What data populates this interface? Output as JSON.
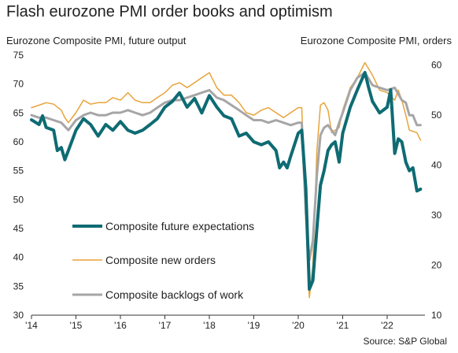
{
  "title": "Flash eurozone PMI order books and optimism",
  "source": "Source: S&P Global",
  "colors": {
    "future": "#0e6b73",
    "orders": "#e8a33a",
    "backlogs": "#a6a6a6",
    "axis": "#333333"
  },
  "chart_data": {
    "type": "line",
    "ylabel_left": "Eurozone Composite PMI, future output",
    "ylabel_right": "Eurozone Composite PMI, orders",
    "ylim_left": [
      30,
      75
    ],
    "ylim_right": [
      10,
      62
    ],
    "yticks_left": [
      30,
      35,
      40,
      45,
      50,
      55,
      60,
      65,
      70,
      75
    ],
    "yticks_right": [
      10,
      20,
      30,
      40,
      50,
      60
    ],
    "xlim": [
      2014.0,
      2022.85
    ],
    "xticks": [
      {
        "x": 2014,
        "label": "'14"
      },
      {
        "x": 2015,
        "label": "'15"
      },
      {
        "x": 2016,
        "label": "'16"
      },
      {
        "x": 2017,
        "label": "'17"
      },
      {
        "x": 2018,
        "label": "'18"
      },
      {
        "x": 2019,
        "label": "'19"
      },
      {
        "x": 2020,
        "label": "'20"
      },
      {
        "x": 2021,
        "label": "'21"
      },
      {
        "x": 2022,
        "label": "'22"
      }
    ],
    "grid": false,
    "legend_position": "bottom-left",
    "series": [
      {
        "name": "Composite future expectations",
        "axis": "left",
        "color_key": "future",
        "width": 4,
        "points": [
          [
            2014.0,
            63.8
          ],
          [
            2014.17,
            63.0
          ],
          [
            2014.25,
            64.5
          ],
          [
            2014.33,
            62.5
          ],
          [
            2014.5,
            62.0
          ],
          [
            2014.58,
            58.5
          ],
          [
            2014.67,
            59.0
          ],
          [
            2014.75,
            56.9
          ],
          [
            2014.83,
            58.5
          ],
          [
            2015.0,
            62.0
          ],
          [
            2015.17,
            64.0
          ],
          [
            2015.33,
            63.0
          ],
          [
            2015.5,
            61.0
          ],
          [
            2015.67,
            63.0
          ],
          [
            2015.83,
            62.0
          ],
          [
            2016.0,
            63.5
          ],
          [
            2016.17,
            62.0
          ],
          [
            2016.33,
            61.5
          ],
          [
            2016.5,
            62.0
          ],
          [
            2016.67,
            63.0
          ],
          [
            2016.83,
            64.0
          ],
          [
            2017.0,
            66.0
          ],
          [
            2017.17,
            67.0
          ],
          [
            2017.33,
            68.5
          ],
          [
            2017.5,
            66.0
          ],
          [
            2017.67,
            67.5
          ],
          [
            2017.83,
            65.0
          ],
          [
            2018.0,
            68.0
          ],
          [
            2018.17,
            66.0
          ],
          [
            2018.33,
            64.5
          ],
          [
            2018.5,
            64.0
          ],
          [
            2018.67,
            61.0
          ],
          [
            2018.83,
            61.5
          ],
          [
            2019.0,
            60.0
          ],
          [
            2019.17,
            59.5
          ],
          [
            2019.33,
            60.0
          ],
          [
            2019.5,
            58.5
          ],
          [
            2019.58,
            55.5
          ],
          [
            2019.67,
            56.5
          ],
          [
            2019.75,
            55.5
          ],
          [
            2019.83,
            57.5
          ],
          [
            2020.0,
            61.5
          ],
          [
            2020.08,
            62.0
          ],
          [
            2020.17,
            52.0
          ],
          [
            2020.25,
            34.5
          ],
          [
            2020.33,
            36.0
          ],
          [
            2020.42,
            45.0
          ],
          [
            2020.5,
            52.5
          ],
          [
            2020.58,
            55.0
          ],
          [
            2020.67,
            58.5
          ],
          [
            2020.75,
            59.5
          ],
          [
            2020.83,
            60.0
          ],
          [
            2020.92,
            56.5
          ],
          [
            2021.0,
            61.5
          ],
          [
            2021.17,
            66.0
          ],
          [
            2021.33,
            69.0
          ],
          [
            2021.5,
            72.0
          ],
          [
            2021.58,
            69.5
          ],
          [
            2021.67,
            67.0
          ],
          [
            2021.83,
            65.0
          ],
          [
            2022.0,
            66.0
          ],
          [
            2022.08,
            69.0
          ],
          [
            2022.17,
            58.0
          ],
          [
            2022.25,
            60.5
          ],
          [
            2022.33,
            60.0
          ],
          [
            2022.42,
            56.5
          ],
          [
            2022.5,
            55.0
          ],
          [
            2022.58,
            55.5
          ],
          [
            2022.67,
            51.5
          ],
          [
            2022.75,
            51.8
          ]
        ]
      },
      {
        "name": "Composite new orders",
        "axis": "right",
        "color_key": "orders",
        "width": 1.5,
        "points": [
          [
            2014.0,
            51.5
          ],
          [
            2014.17,
            52.0
          ],
          [
            2014.33,
            52.5
          ],
          [
            2014.5,
            52.2
          ],
          [
            2014.67,
            51.0
          ],
          [
            2014.75,
            49.5
          ],
          [
            2014.83,
            48.5
          ],
          [
            2015.0,
            50.5
          ],
          [
            2015.17,
            53.0
          ],
          [
            2015.33,
            52.2
          ],
          [
            2015.5,
            52.5
          ],
          [
            2015.67,
            52.5
          ],
          [
            2015.83,
            53.5
          ],
          [
            2016.0,
            53.0
          ],
          [
            2016.17,
            54.5
          ],
          [
            2016.33,
            53.0
          ],
          [
            2016.5,
            52.5
          ],
          [
            2016.67,
            52.5
          ],
          [
            2016.83,
            53.5
          ],
          [
            2017.0,
            54.5
          ],
          [
            2017.17,
            56.0
          ],
          [
            2017.33,
            56.5
          ],
          [
            2017.5,
            55.5
          ],
          [
            2017.67,
            56.5
          ],
          [
            2017.83,
            57.5
          ],
          [
            2018.0,
            58.5
          ],
          [
            2018.17,
            55.5
          ],
          [
            2018.33,
            54.0
          ],
          [
            2018.5,
            54.0
          ],
          [
            2018.67,
            52.5
          ],
          [
            2018.83,
            50.5
          ],
          [
            2019.0,
            50.0
          ],
          [
            2019.17,
            51.0
          ],
          [
            2019.33,
            51.5
          ],
          [
            2019.5,
            50.5
          ],
          [
            2019.67,
            49.5
          ],
          [
            2019.83,
            50.5
          ],
          [
            2020.0,
            51.5
          ],
          [
            2020.08,
            51.5
          ],
          [
            2020.17,
            28.5
          ],
          [
            2020.25,
            13.5
          ],
          [
            2020.33,
            20.0
          ],
          [
            2020.42,
            43.0
          ],
          [
            2020.5,
            52.0
          ],
          [
            2020.58,
            52.5
          ],
          [
            2020.67,
            51.0
          ],
          [
            2020.75,
            46.5
          ],
          [
            2020.83,
            47.0
          ],
          [
            2020.92,
            47.5
          ],
          [
            2021.0,
            51.0
          ],
          [
            2021.17,
            55.5
          ],
          [
            2021.33,
            57.5
          ],
          [
            2021.5,
            60.5
          ],
          [
            2021.67,
            58.0
          ],
          [
            2021.83,
            55.0
          ],
          [
            2022.0,
            54.5
          ],
          [
            2022.17,
            53.0
          ],
          [
            2022.25,
            55.0
          ],
          [
            2022.33,
            53.0
          ],
          [
            2022.42,
            50.0
          ],
          [
            2022.5,
            47.0
          ],
          [
            2022.67,
            46.5
          ],
          [
            2022.75,
            45.0
          ]
        ]
      },
      {
        "name": "Composite backlogs of work",
        "axis": "right",
        "color_key": "backlogs",
        "width": 3,
        "points": [
          [
            2014.0,
            50.0
          ],
          [
            2014.17,
            49.5
          ],
          [
            2014.33,
            49.5
          ],
          [
            2014.5,
            49.0
          ],
          [
            2014.67,
            48.5
          ],
          [
            2014.83,
            47.0
          ],
          [
            2015.0,
            49.0
          ],
          [
            2015.17,
            50.0
          ],
          [
            2015.33,
            50.5
          ],
          [
            2015.5,
            50.0
          ],
          [
            2015.67,
            50.0
          ],
          [
            2015.83,
            50.5
          ],
          [
            2016.0,
            50.5
          ],
          [
            2016.17,
            51.0
          ],
          [
            2016.33,
            50.5
          ],
          [
            2016.5,
            50.0
          ],
          [
            2016.67,
            50.5
          ],
          [
            2016.83,
            51.5
          ],
          [
            2017.0,
            52.5
          ],
          [
            2017.17,
            53.0
          ],
          [
            2017.33,
            53.0
          ],
          [
            2017.5,
            53.5
          ],
          [
            2017.67,
            54.0
          ],
          [
            2017.83,
            54.5
          ],
          [
            2018.0,
            55.0
          ],
          [
            2018.17,
            53.5
          ],
          [
            2018.33,
            53.0
          ],
          [
            2018.5,
            52.0
          ],
          [
            2018.67,
            51.0
          ],
          [
            2018.83,
            50.0
          ],
          [
            2019.0,
            49.0
          ],
          [
            2019.17,
            49.0
          ],
          [
            2019.33,
            48.5
          ],
          [
            2019.5,
            49.0
          ],
          [
            2019.67,
            48.5
          ],
          [
            2019.83,
            48.0
          ],
          [
            2020.0,
            48.5
          ],
          [
            2020.08,
            48.5
          ],
          [
            2020.17,
            30.5
          ],
          [
            2020.25,
            21.0
          ],
          [
            2020.33,
            25.0
          ],
          [
            2020.42,
            38.0
          ],
          [
            2020.5,
            46.0
          ],
          [
            2020.58,
            47.5
          ],
          [
            2020.67,
            48.0
          ],
          [
            2020.75,
            47.0
          ],
          [
            2020.83,
            46.0
          ],
          [
            2020.92,
            48.5
          ],
          [
            2021.0,
            50.5
          ],
          [
            2021.17,
            55.0
          ],
          [
            2021.33,
            57.5
          ],
          [
            2021.5,
            58.5
          ],
          [
            2021.67,
            56.0
          ],
          [
            2021.83,
            55.5
          ],
          [
            2022.0,
            55.0
          ],
          [
            2022.17,
            55.5
          ],
          [
            2022.33,
            53.0
          ],
          [
            2022.42,
            52.5
          ],
          [
            2022.5,
            50.0
          ],
          [
            2022.58,
            50.0
          ],
          [
            2022.67,
            48.0
          ],
          [
            2022.75,
            48.0
          ]
        ]
      }
    ]
  }
}
